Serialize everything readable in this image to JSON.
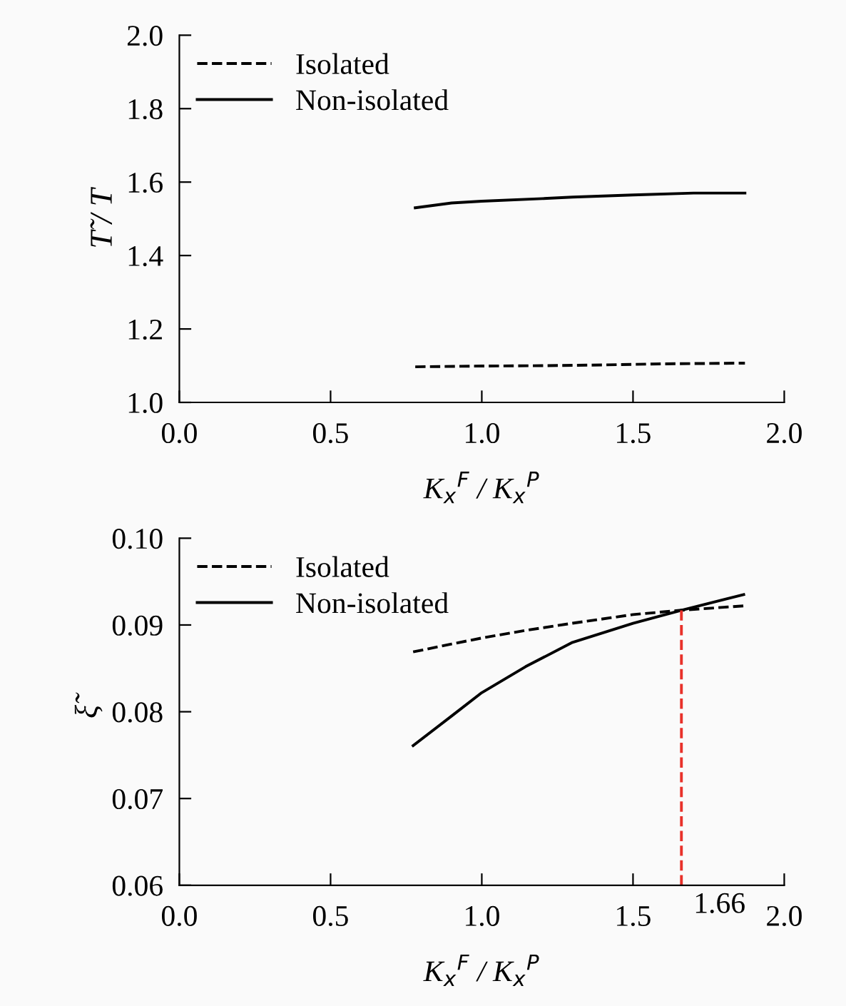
{
  "chart_data": [
    {
      "type": "line",
      "xlabel": "K$_{x}$$^{F}$ / K$_{x}$$^{P}$",
      "ylabel": "T̃ / T",
      "xlim": [
        0,
        2.0
      ],
      "xticks": [
        {
          "value": 0,
          "label": "0.0"
        },
        {
          "value": 0.5,
          "label": "0.5"
        },
        {
          "value": 1,
          "label": "1.0"
        },
        {
          "value": 1.5,
          "label": "1.5"
        },
        {
          "value": 2,
          "label": "2.0"
        }
      ],
      "ylim": [
        1.0,
        2.0
      ],
      "yticks": [
        {
          "value": 1,
          "label": "1.0"
        },
        {
          "value": 1.2,
          "label": "1.2"
        },
        {
          "value": 1.4,
          "label": "1.4"
        },
        {
          "value": 1.6,
          "label": "1.6"
        },
        {
          "value": 1.8,
          "label": "1.8"
        },
        {
          "value": 2,
          "label": "2.0"
        }
      ],
      "legend": "top left",
      "grid": false,
      "series": [
        {
          "name": "Isolated",
          "color": "#000000",
          "line_style": "dashed",
          "x": [
            0.78,
            1.0,
            1.2,
            1.4,
            1.6,
            1.87
          ],
          "values": [
            1.097,
            1.099,
            1.1,
            1.102,
            1.105,
            1.107
          ]
        },
        {
          "name": "Non-isolated",
          "color": "#000000",
          "line_style": "solid",
          "x": [
            0.78,
            0.9,
            1.0,
            1.2,
            1.3,
            1.5,
            1.7,
            1.87
          ],
          "values": [
            1.53,
            1.543,
            1.548,
            1.555,
            1.559,
            1.565,
            1.57,
            1.57
          ]
        }
      ]
    },
    {
      "type": "line",
      "xlabel": "K$_{x}$$^{F}$ / K$_{x}$$^{P}$",
      "ylabel": "ξ̃",
      "xlim": [
        0,
        2.0
      ],
      "xticks": [
        {
          "value": 0,
          "label": "0.0"
        },
        {
          "value": 0.5,
          "label": "0.5"
        },
        {
          "value": 1,
          "label": "1.0"
        },
        {
          "value": 1.5,
          "label": "1.5"
        },
        {
          "value": 2,
          "label": "2.0"
        }
      ],
      "ylim": [
        0.06,
        0.1
      ],
      "yticks": [
        {
          "value": 0.06,
          "label": "0.06"
        },
        {
          "value": 0.07,
          "label": "0.07"
        },
        {
          "value": 0.08,
          "label": "0.08"
        },
        {
          "value": 0.09,
          "label": "0.09"
        },
        {
          "value": 0.1,
          "label": "0.10"
        }
      ],
      "legend": "top left",
      "grid": false,
      "series": [
        {
          "name": "Isolated",
          "color": "#000000",
          "line_style": "dashed",
          "x": [
            0.773,
            0.9,
            1.0,
            1.15,
            1.3,
            1.5,
            1.66,
            1.866
          ],
          "values": [
            0.0869,
            0.0878,
            0.0885,
            0.0894,
            0.0902,
            0.0912,
            0.0917,
            0.0922
          ]
        },
        {
          "name": "Non-isolated",
          "color": "#000000",
          "line_style": "solid",
          "x": [
            0.773,
            0.9,
            1.0,
            1.145,
            1.3,
            1.5,
            1.66,
            1.866
          ],
          "values": [
            0.0761,
            0.0795,
            0.0822,
            0.0852,
            0.088,
            0.0902,
            0.0917,
            0.0935
          ]
        }
      ],
      "ref_lines": [
        {
          "axis": "x",
          "value": 1.66,
          "label": "1.66",
          "color": "#e8312a",
          "line_style": "dashed"
        }
      ]
    }
  ]
}
